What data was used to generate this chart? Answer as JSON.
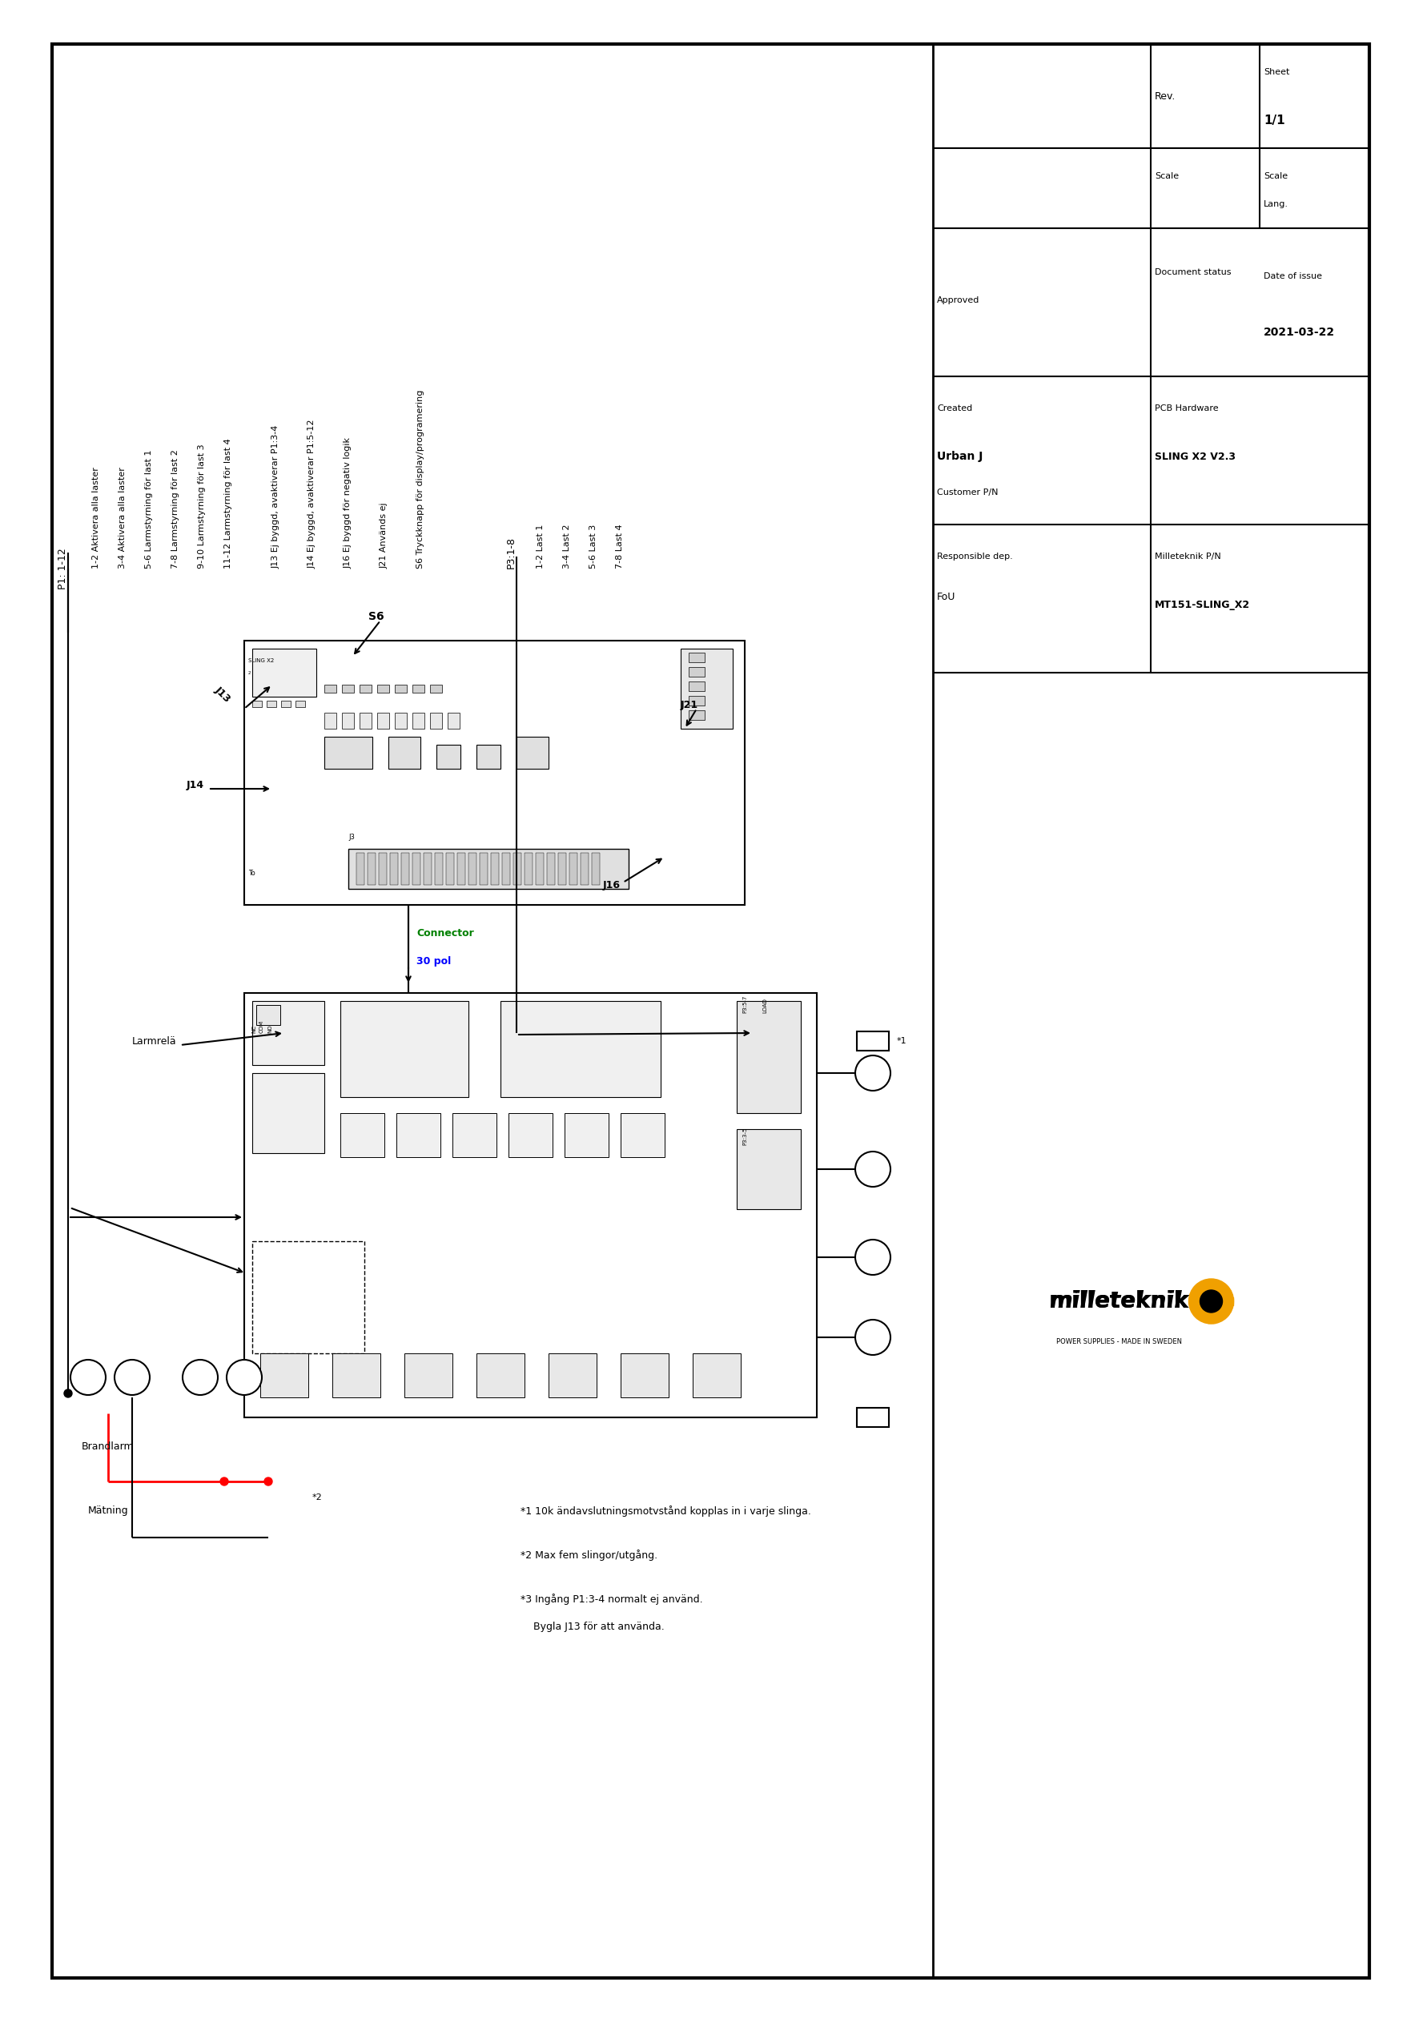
{
  "bg_color": "#ffffff",
  "border_lw": 3.0,
  "title_block": {
    "responsible_dep_label": "Responsible dep.",
    "responsible_dep_value": "FoU",
    "pcb_hw_label": "PCB Hardware",
    "pcb_hw_value": "SLING X2 V2.3",
    "created_label": "Created",
    "created_value": "Urban J",
    "customer_pn_label": "Customer P/N",
    "milleteknik_pn_label": "Milleteknik P/N",
    "milleteknik_pn_value": "MT151-SLING_X2",
    "approved_label": "Approved",
    "doc_status_label": "Document status",
    "date_label": "Date of issue",
    "date_value": "2021-03-22",
    "scale_label": "Scale",
    "lang_label": "Lang.",
    "rev_label": "Rev.",
    "sheet_label": "Sheet",
    "sheet_value": "1/1"
  },
  "p1_label": "P1: 1-12",
  "p1_sub": [
    "1-2 Aktivera alla laster",
    "3-4 Aktivera alla laster",
    "5-6 Larmstyrning för last 1",
    "7-8 Larmstyrning för last 2",
    "9-10 Larmstyrning för last 3",
    "11-12 Larmstyrning för last 4"
  ],
  "j_labels": [
    "J13 Ej byggd, avaktiverar P1:3-4",
    "J14 Ej byggd, avaktiverar P1:5-12",
    "J16 Ej byggd för negativ logik",
    "J21 Används ej",
    "S6 Tryckknapp för display/programering"
  ],
  "p3_label": "P3:1-8",
  "p3_sub": [
    "1-2 Last 1",
    "3-4 Last 2",
    "5-6 Last 3",
    "7-8 Last 4"
  ],
  "connector_green": "Connector",
  "connector_blue": "30 pol",
  "larmrela": "Larmrelä",
  "brandlarm": "Brandlarm",
  "matning": "Mätning",
  "note1": "*1 10k ändavslutningsmotvstånd kopplas in i varje slinga.",
  "note2": "*2 Max fem slingor/utgång.",
  "note3a": "*3 Ingång P1:3-4 normalt ej använd.",
  "note3b": "    Bygla J13 för att använda.",
  "s6": "S6",
  "j13": "J13",
  "j14": "J14",
  "j16": "J16",
  "j21": "J21",
  "star2": "*2",
  "star1": "*1"
}
